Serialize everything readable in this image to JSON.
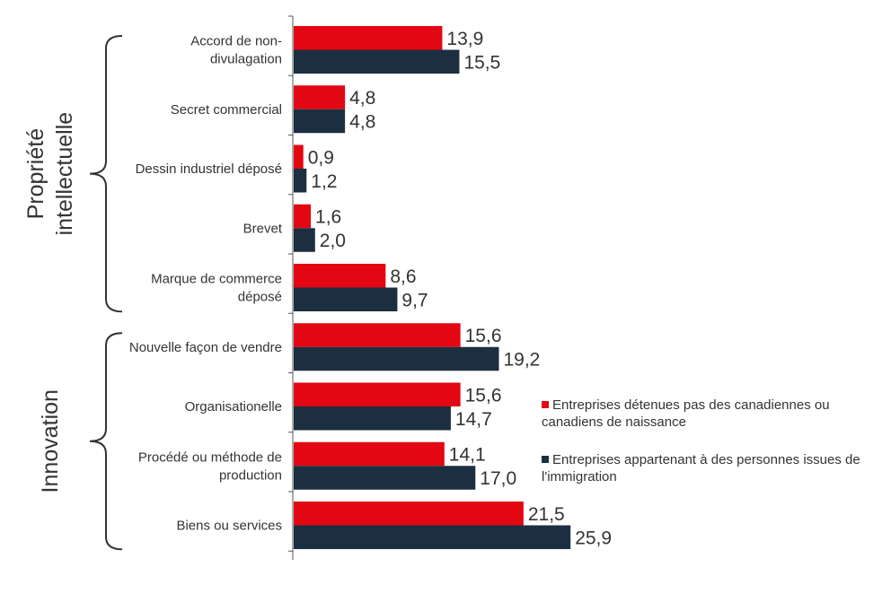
{
  "chart_data": {
    "type": "bar",
    "orientation": "horizontal",
    "categories": [
      [
        "Accord de non-",
        "divulagation"
      ],
      [
        "Secret commercial"
      ],
      [
        "Dessin industriel déposé"
      ],
      [
        "Brevet"
      ],
      [
        "Marque de commerce",
        "déposé"
      ],
      [
        "Nouvelle façon de vendre"
      ],
      [
        "Organisationelle"
      ],
      [
        "Procédé ou méthode de",
        "production"
      ],
      [
        "Biens ou services"
      ]
    ],
    "series": [
      {
        "name": "Entreprises détenues pas des canadiennes ou canadiens de naissance",
        "legend_lines": [
          "Entreprises détenues pas des canadiennes ou",
          "canadiens de naissance"
        ],
        "color": "#e30613",
        "values": [
          13.9,
          4.8,
          0.9,
          1.6,
          8.6,
          15.6,
          15.6,
          14.1,
          21.5
        ],
        "labels": [
          "13,9",
          "4,8",
          "0,9",
          "1,6",
          "8,6",
          "15,6",
          "15,6",
          "14,1",
          "21,5"
        ]
      },
      {
        "name": "Entreprises appartenant à des personnes issues de l'immigration",
        "legend_lines": [
          "Entreprises appartenant à des personnes issues de",
          "l'immigration"
        ],
        "color": "#1c2f40",
        "values": [
          15.5,
          4.8,
          1.2,
          2.0,
          9.7,
          19.2,
          14.7,
          17.0,
          25.9
        ],
        "labels": [
          "15,5",
          "4,8",
          "1,2",
          "2,0",
          "9,7",
          "19,2",
          "14,7",
          "17,0",
          "25,9"
        ]
      }
    ],
    "groups": [
      {
        "lines": [
          "Propriété",
          "intellectuelle"
        ],
        "from": 0,
        "to": 4
      },
      {
        "lines": [
          "Innovation"
        ],
        "from": 5,
        "to": 8
      }
    ],
    "xlim": [
      0,
      60
    ],
    "grid": false,
    "legend_position": "right"
  }
}
